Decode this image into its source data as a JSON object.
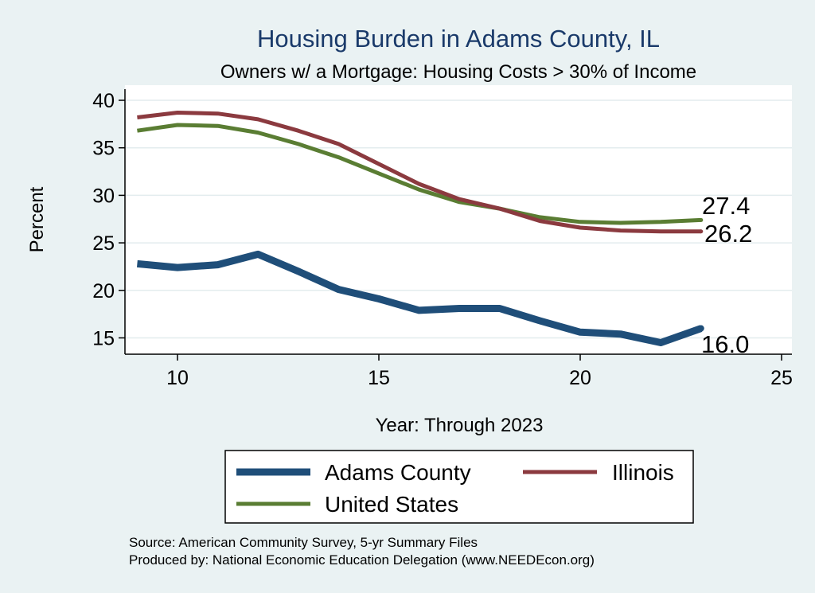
{
  "chart_data": {
    "type": "line",
    "title": "Housing Burden in Adams County, IL",
    "subtitle": "Owners w/ a Mortgage: Housing Costs > 30% of Income",
    "xlabel": "Year: Through 2023",
    "ylabel": "Percent",
    "xlim": [
      8.7,
      25
    ],
    "ylim": [
      13.2,
      41.5
    ],
    "xticks": [
      10,
      15,
      20,
      25
    ],
    "yticks": [
      15,
      20,
      25,
      30,
      35,
      40
    ],
    "grid": true,
    "x": [
      9,
      10,
      11,
      12,
      13,
      14,
      15,
      16,
      17,
      18,
      19,
      20,
      21,
      22,
      23
    ],
    "series": [
      {
        "name": "Adams County",
        "color": "#1f4e79",
        "values": [
          22.8,
          22.4,
          22.7,
          23.8,
          22.0,
          20.1,
          19.1,
          17.9,
          18.1,
          18.1,
          16.8,
          15.6,
          15.4,
          14.5,
          16.0
        ],
        "end_label": "16.0"
      },
      {
        "name": "Illinois",
        "color": "#8b3a3f",
        "values": [
          38.2,
          38.7,
          38.6,
          38.0,
          36.8,
          35.4,
          33.3,
          31.2,
          29.6,
          28.6,
          27.3,
          26.6,
          26.3,
          26.2,
          26.2
        ],
        "end_label": "26.2"
      },
      {
        "name": "United States",
        "color": "#5a7d33",
        "values": [
          36.8,
          37.4,
          37.3,
          36.6,
          35.4,
          34.0,
          32.3,
          30.6,
          29.3,
          28.6,
          27.7,
          27.2,
          27.1,
          27.2,
          27.4
        ],
        "end_label": "27.4"
      }
    ],
    "legend": {
      "position": "bottom"
    }
  },
  "footer": {
    "source": "Source: American Community Survey, 5-yr Summary Files",
    "produced_by": "Produced by: National Economic Education Delegation (www.NEEDEcon.org)"
  }
}
